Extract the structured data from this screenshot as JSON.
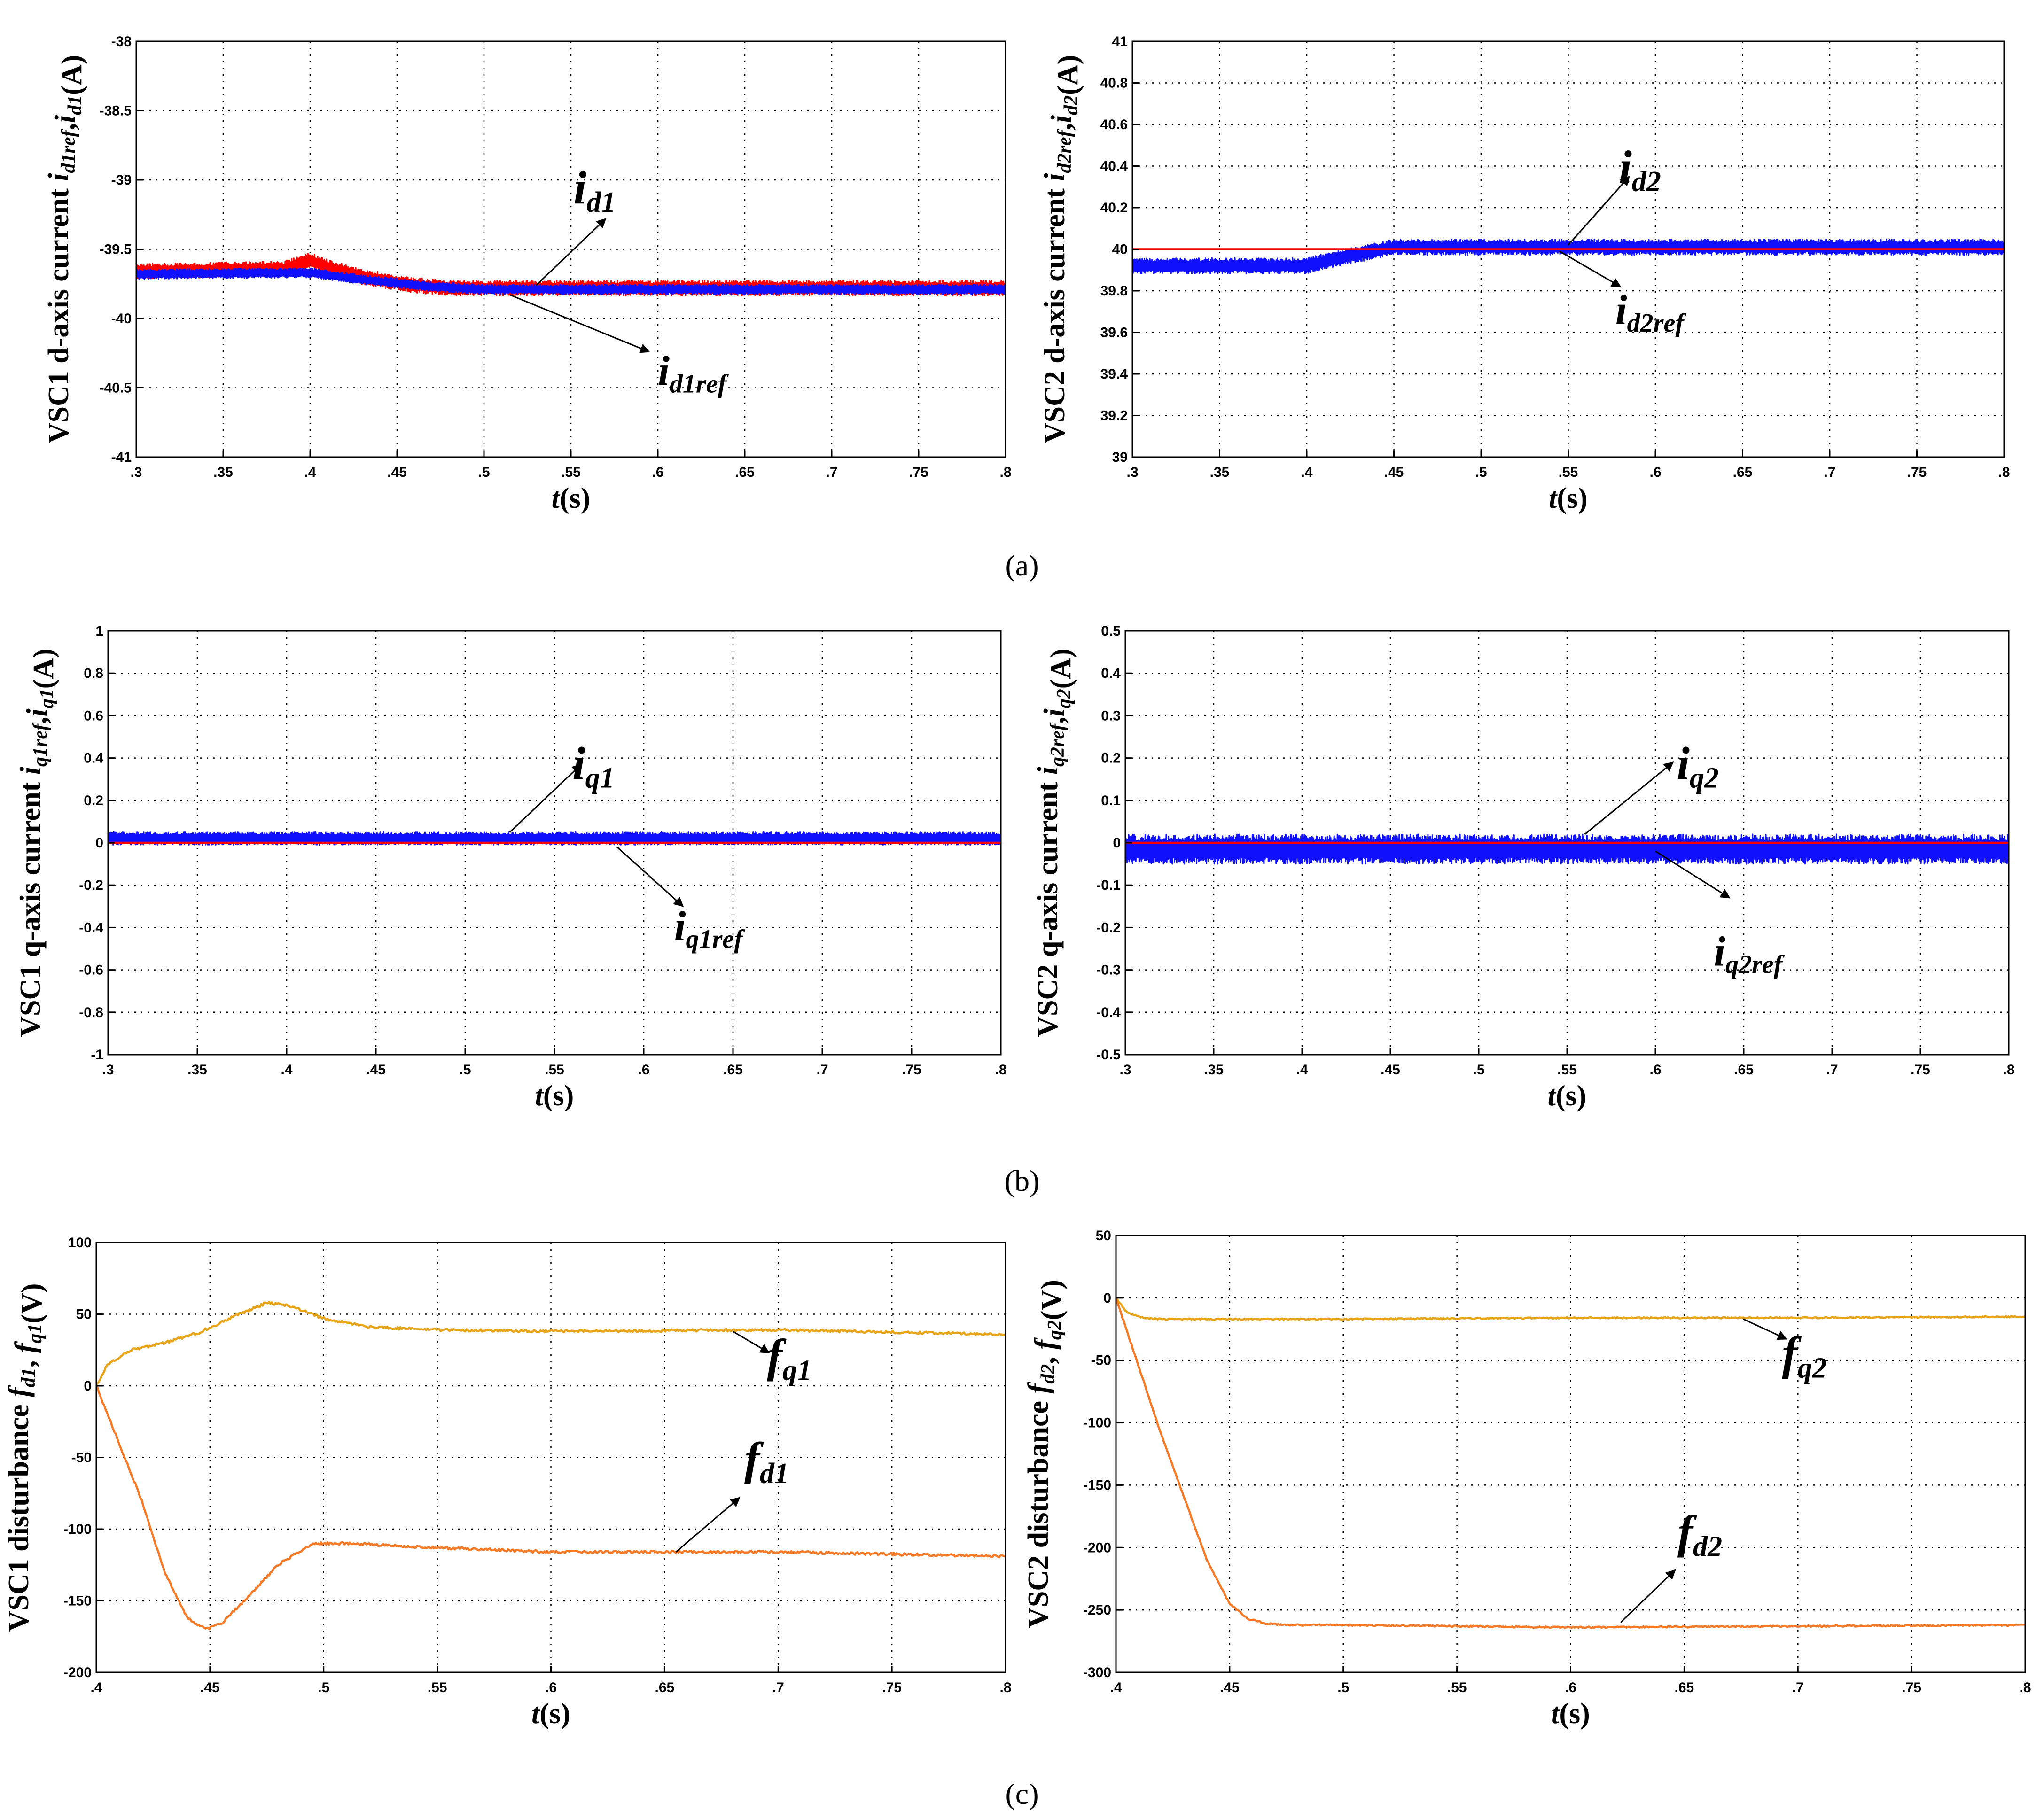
{
  "figure_captions": [
    "(a)",
    "(b)",
    "(c)"
  ],
  "chart_data": [
    {
      "id": "a-left",
      "type": "line",
      "ylabel": "VSC1 d-axis current i_d1ref,i_d1(A)",
      "xlabel": "t(s)",
      "xlim": [
        0.3,
        0.8
      ],
      "ylim": [
        -41,
        -38
      ],
      "xticks": [
        0.3,
        0.35,
        0.4,
        0.45,
        0.5,
        0.55,
        0.6,
        0.65,
        0.7,
        0.75,
        0.8
      ],
      "yticks": [
        -41,
        -40.5,
        -40,
        -39.5,
        -39,
        -38.5,
        -38
      ],
      "grid": true,
      "series": [
        {
          "name": "i_d1ref",
          "color": "#ff0000",
          "band": true,
          "noise": 0.055,
          "x": [
            0.3,
            0.385,
            0.395,
            0.4,
            0.41,
            0.43,
            0.46,
            0.48,
            0.8
          ],
          "y": [
            -39.66,
            -39.64,
            -39.6,
            -39.58,
            -39.63,
            -39.7,
            -39.76,
            -39.78,
            -39.78
          ]
        },
        {
          "name": "i_d1",
          "color": "#1010ff",
          "band": true,
          "noise": 0.035,
          "x": [
            0.3,
            0.4,
            0.43,
            0.47,
            0.5,
            0.8
          ],
          "y": [
            -39.68,
            -39.67,
            -39.72,
            -39.77,
            -39.79,
            -39.79
          ]
        }
      ],
      "annotations": [
        {
          "label": "i",
          "sub": "d1",
          "label_x": 0.5515,
          "label_y": -39.17,
          "arrow_from": [
            0.53,
            -39.76
          ],
          "arrow_to": [
            0.57,
            -39.28
          ],
          "size": 100
        },
        {
          "label": "i",
          "sub": "d1ref",
          "label_x": 0.6,
          "label_y": -40.48,
          "arrow_from": [
            0.515,
            -39.83
          ],
          "arrow_to": [
            0.595,
            -40.24
          ],
          "size": 90
        }
      ]
    },
    {
      "id": "a-right",
      "type": "line",
      "ylabel": "VSC2 d-axis current i_d2ref,i_d2(A)",
      "xlabel": "t(s)",
      "xlim": [
        0.3,
        0.8
      ],
      "ylim": [
        39,
        41
      ],
      "xticks": [
        0.3,
        0.35,
        0.4,
        0.45,
        0.5,
        0.55,
        0.6,
        0.65,
        0.7,
        0.75,
        0.8
      ],
      "yticks": [
        39,
        39.2,
        39.4,
        39.6,
        39.8,
        40,
        40.2,
        40.4,
        40.6,
        40.8,
        41
      ],
      "grid": true,
      "series": [
        {
          "name": "i_d2",
          "color": "#1010ff",
          "band": true,
          "noise": 0.038,
          "x": [
            0.3,
            0.4,
            0.42,
            0.45,
            0.8
          ],
          "y": [
            39.92,
            39.92,
            39.96,
            40.01,
            40.01
          ]
        },
        {
          "name": "i_d2ref",
          "color": "#ff0000",
          "band": false,
          "noise": 0,
          "x": [
            0.3,
            0.8
          ],
          "y": [
            40,
            40
          ]
        }
      ],
      "annotations": [
        {
          "label": "i",
          "sub": "d2",
          "label_x": 0.579,
          "label_y": 40.32,
          "arrow_from": [
            0.55,
            40.02
          ],
          "arrow_to": [
            0.585,
            40.35
          ],
          "size": 100
        },
        {
          "label": "i",
          "sub": "d2ref",
          "label_x": 0.577,
          "label_y": 39.64,
          "arrow_from": [
            0.545,
            39.99
          ],
          "arrow_to": [
            0.58,
            39.82
          ],
          "size": 90
        }
      ]
    },
    {
      "id": "b-left",
      "type": "line",
      "ylabel": "VSC1 q-axis current i_q1ref,i_q1(A)",
      "xlabel": "t(s)",
      "xlim": [
        0.3,
        0.8
      ],
      "ylim": [
        -1,
        1
      ],
      "xticks": [
        0.3,
        0.35,
        0.4,
        0.45,
        0.5,
        0.55,
        0.6,
        0.65,
        0.7,
        0.75,
        0.8
      ],
      "yticks": [
        -1,
        -0.8,
        -0.6,
        -0.4,
        -0.2,
        0,
        0.2,
        0.4,
        0.6,
        0.8,
        1
      ],
      "grid": true,
      "series": [
        {
          "name": "i_q1",
          "color": "#1010ff",
          "band": true,
          "noise": 0.03,
          "x": [
            0.3,
            0.8
          ],
          "y": [
            0.02,
            0.02
          ]
        },
        {
          "name": "i_q1ref",
          "color": "#ff0000",
          "band": false,
          "noise": 0,
          "x": [
            0.3,
            0.8
          ],
          "y": [
            0,
            0
          ]
        }
      ],
      "annotations": [
        {
          "label": "i",
          "sub": "q1",
          "label_x": 0.56,
          "label_y": 0.3,
          "arrow_from": [
            0.525,
            0.05
          ],
          "arrow_to": [
            0.565,
            0.37
          ],
          "size": 100
        },
        {
          "label": "i",
          "sub": "q1ref",
          "label_x": 0.617,
          "label_y": -0.46,
          "arrow_from": [
            0.585,
            -0.02
          ],
          "arrow_to": [
            0.622,
            -0.3
          ],
          "size": 90
        }
      ]
    },
    {
      "id": "b-right",
      "type": "line",
      "ylabel": "VSC2 q-axis current i_q2ref,i_q2(A)",
      "xlabel": "t(s)",
      "xlim": [
        0.3,
        0.8
      ],
      "ylim": [
        -0.5,
        0.5
      ],
      "xticks": [
        0.3,
        0.35,
        0.4,
        0.45,
        0.5,
        0.55,
        0.6,
        0.65,
        0.7,
        0.75,
        0.8
      ],
      "yticks": [
        -0.5,
        -0.4,
        -0.3,
        -0.2,
        -0.1,
        0,
        0.1,
        0.2,
        0.3,
        0.4,
        0.5
      ],
      "grid": true,
      "series": [
        {
          "name": "i_q2",
          "color": "#1010ff",
          "band": true,
          "noise": 0.035,
          "x": [
            0.3,
            0.8
          ],
          "y": [
            -0.015,
            -0.015
          ]
        },
        {
          "name": "i_q2ref",
          "color": "#ff0000",
          "band": false,
          "noise": 0,
          "x": [
            0.3,
            0.8
          ],
          "y": [
            0,
            0
          ]
        }
      ],
      "annotations": [
        {
          "label": "i",
          "sub": "q2",
          "label_x": 0.612,
          "label_y": 0.15,
          "arrow_from": [
            0.56,
            0.02
          ],
          "arrow_to": [
            0.61,
            0.19
          ],
          "size": 100
        },
        {
          "label": "i",
          "sub": "q2ref",
          "label_x": 0.633,
          "label_y": -0.29,
          "arrow_from": [
            0.6,
            -0.02
          ],
          "arrow_to": [
            0.642,
            -0.13
          ],
          "size": 90
        }
      ]
    },
    {
      "id": "c-left",
      "type": "line",
      "ylabel": "VSC1 disturbance f_d1, f_q1(V)",
      "xlabel": "t(s)",
      "xlim": [
        0.4,
        0.8
      ],
      "ylim": [
        -200,
        100
      ],
      "xticks": [
        0.4,
        0.45,
        0.5,
        0.55,
        0.6,
        0.65,
        0.7,
        0.75,
        0.8
      ],
      "yticks": [
        -200,
        -150,
        -100,
        -50,
        0,
        50,
        100
      ],
      "grid": true,
      "series": [
        {
          "name": "f_q1",
          "color": "#e8a419",
          "band": false,
          "noise": 0.9,
          "x": [
            0.4,
            0.405,
            0.415,
            0.43,
            0.445,
            0.46,
            0.475,
            0.485,
            0.5,
            0.52,
            0.55,
            0.6,
            0.7,
            0.8
          ],
          "y": [
            0,
            15,
            25,
            30,
            37,
            48,
            58,
            56,
            47,
            41,
            39,
            38,
            39,
            36
          ]
        },
        {
          "name": "f_d1",
          "color": "#f47a27",
          "band": false,
          "noise": 0.9,
          "x": [
            0.4,
            0.42,
            0.43,
            0.44,
            0.448,
            0.455,
            0.465,
            0.48,
            0.495,
            0.51,
            0.55,
            0.6,
            0.7,
            0.8
          ],
          "y": [
            0,
            -80,
            -130,
            -162,
            -170,
            -166,
            -150,
            -125,
            -110,
            -110,
            -113,
            -116,
            -116,
            -119
          ]
        }
      ],
      "annotations": [
        {
          "label": "f",
          "sub": "q1",
          "label_x": 0.695,
          "label_y": 10,
          "arrow_from": [
            0.68,
            38
          ],
          "arrow_to": [
            0.696,
            23
          ],
          "size": 100
        },
        {
          "label": "f",
          "sub": "d1",
          "label_x": 0.685,
          "label_y": -62,
          "arrow_from": [
            0.655,
            -116
          ],
          "arrow_to": [
            0.683,
            -78
          ],
          "size": 100
        }
      ]
    },
    {
      "id": "c-right",
      "type": "line",
      "ylabel": "VSC2 disturbance f_d2, f_q2(V)",
      "xlabel": "t(s)",
      "xlim": [
        0.4,
        0.8
      ],
      "ylim": [
        -300,
        50
      ],
      "xticks": [
        0.4,
        0.45,
        0.5,
        0.55,
        0.6,
        0.65,
        0.7,
        0.75,
        0.8
      ],
      "yticks": [
        -300,
        -250,
        -200,
        -150,
        -100,
        -50,
        0,
        50
      ],
      "grid": true,
      "series": [
        {
          "name": "f_q2",
          "color": "#e8a419",
          "band": false,
          "noise": 0.5,
          "x": [
            0.4,
            0.405,
            0.412,
            0.42,
            0.5,
            0.6,
            0.7,
            0.8
          ],
          "y": [
            0,
            -12,
            -16,
            -17,
            -17,
            -16,
            -16,
            -15
          ]
        },
        {
          "name": "f_d2",
          "color": "#f47a27",
          "band": false,
          "noise": 0.6,
          "x": [
            0.4,
            0.42,
            0.44,
            0.45,
            0.458,
            0.466,
            0.475,
            0.5,
            0.6,
            0.7,
            0.8
          ],
          "y": [
            0,
            -110,
            -210,
            -245,
            -257,
            -261,
            -262,
            -262,
            -264,
            -263,
            -262
          ]
        }
      ],
      "annotations": [
        {
          "label": "f",
          "sub": "q2",
          "label_x": 0.693,
          "label_y": -57,
          "arrow_from": [
            0.676,
            -17
          ],
          "arrow_to": [
            0.695,
            -33
          ],
          "size": 100
        },
        {
          "label": "f",
          "sub": "d2",
          "label_x": 0.647,
          "label_y": -200,
          "arrow_from": [
            0.622,
            -260
          ],
          "arrow_to": [
            0.646,
            -218
          ],
          "size": 100
        }
      ]
    }
  ]
}
